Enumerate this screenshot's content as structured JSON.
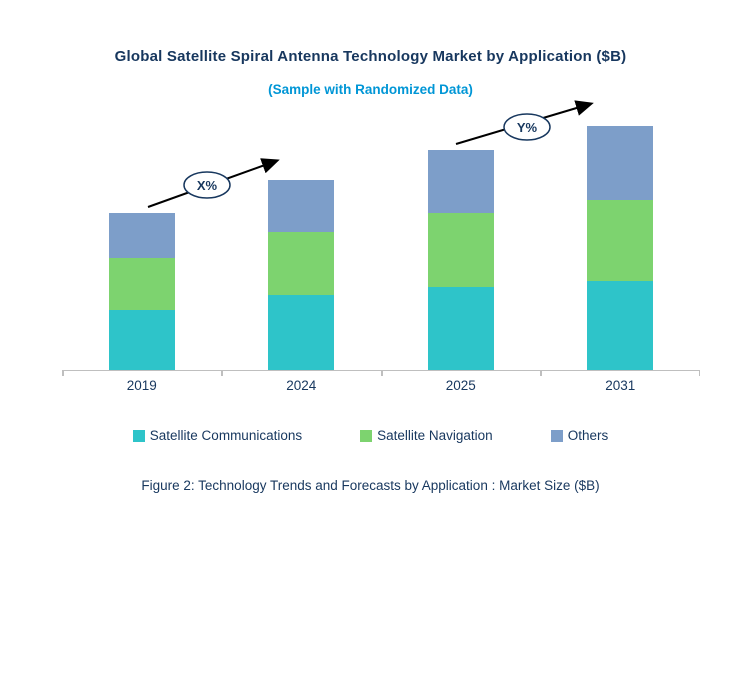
{
  "title": "Global Satellite Spiral Antenna Technology Market by Application ($B)",
  "subtitle": "(Sample with Randomized Data)",
  "caption": "Figure 2: Technology Trends and Forecasts by Application : Market Size ($B)",
  "annotations": {
    "arrow1_label": "X%",
    "arrow2_label": "Y%"
  },
  "colors": {
    "title_text": "#17375E",
    "subtitle_text": "#0096D6",
    "axis_line": "#BFBFBF",
    "arrow": "#000000",
    "communications": "#2EC4C9",
    "navigation": "#7DD36F",
    "others": "#7D9EC9"
  },
  "chart_data": {
    "type": "bar",
    "stacked": true,
    "title": "Global Satellite Spiral Antenna Technology Market by Application ($B)",
    "subtitle": "(Sample with Randomized Data)",
    "xlabel": "",
    "ylabel": "Market Size ($B)",
    "categories": [
      "2019",
      "2024",
      "2025",
      "2031"
    ],
    "series": [
      {
        "name": "Satellite Communications",
        "color": "#2EC4C9",
        "values": [
          0.6,
          0.75,
          0.83,
          0.89
        ]
      },
      {
        "name": "Satellite Navigation",
        "color": "#7DD36F",
        "values": [
          0.52,
          0.63,
          0.74,
          0.81
        ]
      },
      {
        "name": "Others",
        "color": "#7D9EC9",
        "values": [
          0.45,
          0.52,
          0.63,
          0.74
        ]
      }
    ],
    "totals": [
      1.57,
      1.9,
      2.2,
      2.44
    ],
    "ylim": [
      0,
      2.7
    ],
    "grid": false,
    "legend_position": "bottom",
    "annotations": [
      "X% growth arrow between 2019 and 2024",
      "Y% growth arrow between 2025 and 2031"
    ]
  }
}
